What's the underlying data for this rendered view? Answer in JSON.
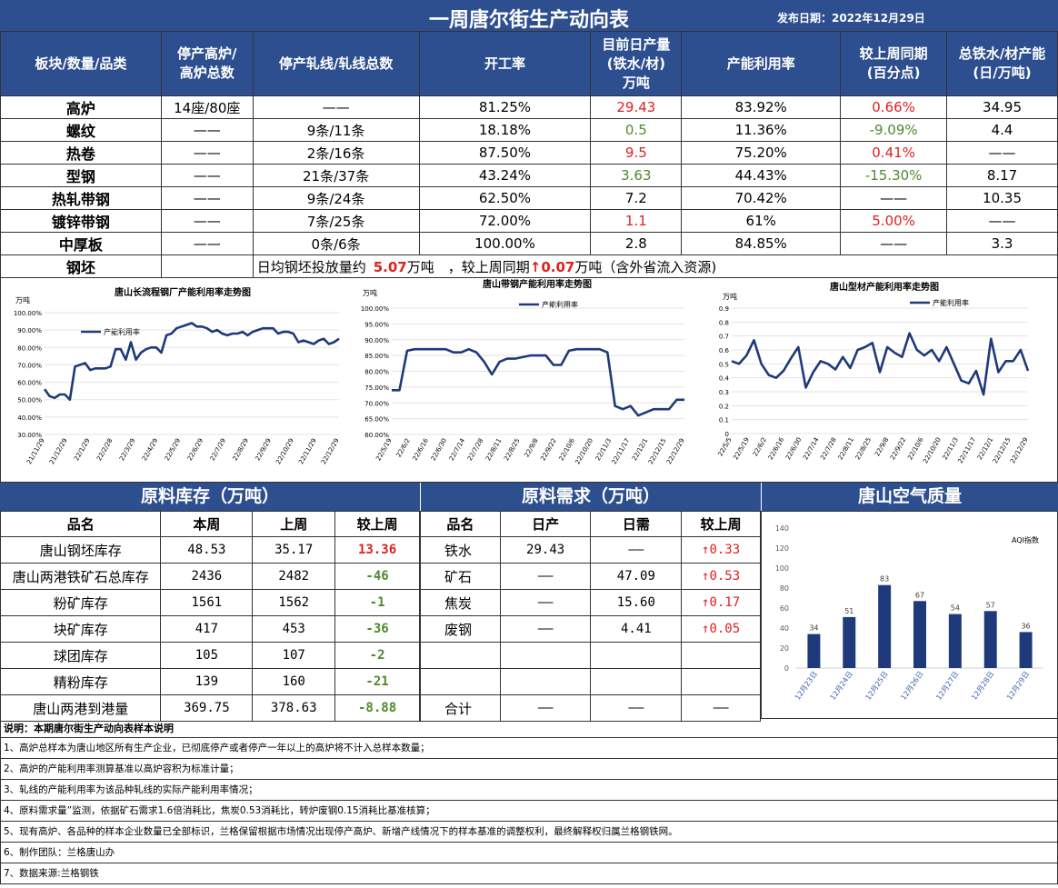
{
  "title": "一周唐尔街生产动向表",
  "publish_date": "发布日期：2022年12月29日",
  "table": {
    "headers": [
      "板块/数量/品类",
      "停产高炉/\n高炉总数",
      "停产轧线/轧线总数",
      "开工率",
      "目前日产量\n(铁水/材)\n万吨",
      "产能利用率",
      "较上周同期\n(百分点)",
      "总铁水/材产能\n(日/万吨)"
    ],
    "rows": [
      {
        "name": "高炉",
        "c1": "14座/80座",
        "c2": "——",
        "c3": "81.25%",
        "c4": "29.43",
        "c5": "83.92%",
        "c6": "0.66%",
        "c7": "34.95"
      },
      {
        "name": "螺纹",
        "c1": "——",
        "c2": "9条/11条",
        "c3": "18.18%",
        "c4": "0.5",
        "c5": "11.36%",
        "c6": "-9.09%",
        "c7": "4.4"
      },
      {
        "name": "热卷",
        "c1": "——",
        "c2": "2条/16条",
        "c3": "87.50%",
        "c4": "9.5",
        "c5": "75.20%",
        "c6": "0.41%",
        "c7": "——"
      },
      {
        "name": "型钢",
        "c1": "——",
        "c2": "21条/37条",
        "c3": "43.24%",
        "c4": "3.63",
        "c5": "44.43%",
        "c6": "-15.30%",
        "c7": "8.17"
      },
      {
        "name": "热轧带钢",
        "c1": "——",
        "c2": "9条/24条",
        "c3": "62.50%",
        "c4": "7.2",
        "c5": "70.42%",
        "c6": "——",
        "c7": "10.35"
      },
      {
        "name": "镀锌带钢",
        "c1": "——",
        "c2": "7条/25条",
        "c3": "72.00%",
        "c4": "1.1",
        "c5": "61%",
        "c6": "5.00%",
        "c7": "——"
      },
      {
        "name": "中厚板",
        "c1": "——",
        "c2": "0条/6条",
        "c3": "100.00%",
        "c4": "2.8",
        "c5": "84.85%",
        "c6": "——",
        "c7": "3.3"
      }
    ],
    "billet": {
      "name": "钢坯",
      "p1": "日均钢坯投放量约",
      "v1": "5.07",
      "p2": "万吨　，较上周同期",
      "v2": "↑0.07",
      "p3": "万吨（含外省流入资源)"
    },
    "colors": {
      "red": "#e02020",
      "green": "#4f8a2a",
      "header": "#2e4f8f"
    }
  },
  "chart_data": [
    {
      "type": "line",
      "title": "唐山长流程钢厂产能利用率走势图",
      "unit": "万吨",
      "legend": "产能利用率",
      "legend_position": "top-left",
      "x_ticks": [
        "21/11/29",
        "21/12/29",
        "22/1/29",
        "22/2/28",
        "22/3/29",
        "22/4/29",
        "22/5/29",
        "22/6/29",
        "22/7/29",
        "22/8/29",
        "22/9/29",
        "22/10/29",
        "22/11/29",
        "22/12/29"
      ],
      "y_ticks": [
        "30.00%",
        "40.00%",
        "50.00%",
        "60.00%",
        "70.00%",
        "80.00%",
        "90.00%",
        "100.00%"
      ],
      "ylim": [
        30,
        100
      ],
      "values": [
        56,
        52,
        51,
        53,
        53,
        50,
        69,
        70,
        71,
        67,
        68,
        68,
        68,
        69,
        79,
        79,
        73,
        83,
        73,
        77,
        79,
        80,
        80,
        77,
        87,
        88,
        91,
        92,
        93,
        94,
        92,
        92,
        91,
        89,
        90,
        88,
        87,
        88,
        88,
        89,
        87,
        89,
        90,
        91,
        91,
        91,
        88,
        89,
        89,
        88,
        83,
        84,
        83,
        82,
        84,
        85,
        82,
        83,
        85
      ]
    },
    {
      "type": "line",
      "title": "唐山带钢产能利用率走势图",
      "unit": "万吨",
      "legend": "产能利用率",
      "legend_position": "top-left",
      "x_ticks": [
        "22/5/19",
        "22/6/2",
        "22/6/16",
        "22/6/30",
        "22/7/14",
        "22/7/28",
        "22/8/11",
        "22/8/25",
        "22/9/8",
        "22/9/22",
        "22/10/6",
        "22/10/20",
        "22/11/3",
        "22/11/17",
        "22/12/1",
        "22/12/15",
        "22/12/29"
      ],
      "y_ticks": [
        "60.00%",
        "65.00%",
        "70.00%",
        "75.00%",
        "80.00%",
        "85.00%",
        "90.00%",
        "95.00%",
        "100.00%"
      ],
      "ylim": [
        60,
        100
      ],
      "values": [
        74,
        74,
        86.5,
        87,
        87,
        87,
        87,
        87,
        86,
        86,
        87,
        86,
        83,
        79,
        83,
        84,
        84,
        84.5,
        85,
        85,
        85,
        82,
        82,
        86.5,
        87,
        87,
        87,
        87,
        86,
        69,
        68,
        69,
        66,
        67,
        68,
        68,
        68,
        71,
        71
      ]
    },
    {
      "type": "line",
      "title": "唐山型材产能利用率走势图",
      "unit": "万吨",
      "legend": "产能利用率",
      "legend_position": "top-center",
      "x_ticks": [
        "22/5/5",
        "22/5/19",
        "22/6/2",
        "22/6/16",
        "22/6/30",
        "22/7/14",
        "22/7/28",
        "22/8/11",
        "22/8/25",
        "22/9/8",
        "22/9/22",
        "22/10/6",
        "22/10/20",
        "22/11/3",
        "22/11/17",
        "22/12/1",
        "22/12/15",
        "22/12/29"
      ],
      "y_ticks": [
        "0",
        "0.1",
        "0.2",
        "0.3",
        "0.4",
        "0.5",
        "0.6",
        "0.7",
        "0.8",
        "0.9"
      ],
      "ylim": [
        0,
        0.9
      ],
      "values": [
        0.52,
        0.5,
        0.56,
        0.67,
        0.5,
        0.42,
        0.4,
        0.45,
        0.54,
        0.62,
        0.33,
        0.44,
        0.52,
        0.5,
        0.46,
        0.55,
        0.47,
        0.6,
        0.62,
        0.65,
        0.44,
        0.62,
        0.58,
        0.55,
        0.72,
        0.6,
        0.56,
        0.6,
        0.52,
        0.62,
        0.5,
        0.38,
        0.36,
        0.45,
        0.28,
        0.68,
        0.44,
        0.52,
        0.52,
        0.6,
        0.45
      ]
    },
    {
      "type": "bar",
      "title": "",
      "legend": "AQI指数",
      "categories": [
        "12月23日",
        "12月24日",
        "12月25日",
        "12月26日",
        "12月27日",
        "12月28日",
        "12月29日"
      ],
      "values": [
        34,
        51,
        83,
        67,
        54,
        57,
        36
      ],
      "y_ticks": [
        "0",
        "20",
        "40",
        "60",
        "80",
        "100",
        "120",
        "140"
      ],
      "ylim": [
        0,
        140
      ],
      "color": "#1f3a7a"
    }
  ],
  "inventory": {
    "title": "原料库存（万吨）",
    "headers": [
      "品名",
      "本周",
      "上周",
      "较上周"
    ],
    "rows": [
      {
        "name": "唐山钢坯库存",
        "cur": "48.53",
        "prev": "35.17",
        "chg": "13.36",
        "style": "red"
      },
      {
        "name": "唐山两港铁矿石总库存",
        "cur": "2436",
        "prev": "2482",
        "chg": "-46",
        "style": "green"
      },
      {
        "name": "粉矿库存",
        "cur": "1561",
        "prev": "1562",
        "chg": "-1",
        "style": "green"
      },
      {
        "name": "块矿库存",
        "cur": "417",
        "prev": "453",
        "chg": "-36",
        "style": "green"
      },
      {
        "name": "球团库存",
        "cur": "105",
        "prev": "107",
        "chg": "-2",
        "style": "green"
      },
      {
        "name": "精粉库存",
        "cur": "139",
        "prev": "160",
        "chg": "-21",
        "style": "green"
      },
      {
        "name": "唐山两港到港量",
        "cur": "369.75",
        "prev": "378.63",
        "chg": "-8.88",
        "style": "green"
      }
    ]
  },
  "demand": {
    "title": "原料需求（万吨）",
    "headers": [
      "品名",
      "日产",
      "日需",
      "较上周"
    ],
    "rows": [
      {
        "name": "铁水",
        "prod": "29.43",
        "need": "——",
        "chg": "↑0.33"
      },
      {
        "name": "矿石",
        "prod": "——",
        "need": "47.09",
        "chg": "↑0.53"
      },
      {
        "name": "焦炭",
        "prod": "——",
        "need": "15.60",
        "chg": "↑0.17"
      },
      {
        "name": "废钢",
        "prod": "——",
        "need": "4.41",
        "chg": "↑0.05"
      },
      {
        "name": "",
        "prod": "",
        "need": "",
        "chg": ""
      },
      {
        "name": "",
        "prod": "",
        "need": "",
        "chg": ""
      },
      {
        "name": "合计",
        "prod": "——",
        "need": "——",
        "chg": "——"
      }
    ]
  },
  "air_quality": {
    "title": "唐山空气质量"
  },
  "notes": [
    "说明：本期唐尔街生产动向表样本说明",
    "1、高炉总样本为唐山地区所有生产企业，已彻底停产或者停产一年以上的高炉将不计入总样本数量；",
    "2、高炉的产能利用率测算基准以高炉容积为标准计量；",
    "3、轧线的产能利用率为该品种轧线的实际产能利用率情况；",
    "4、原料需求量”监测，依据矿石需求1.6倍消耗比，焦炭0.53消耗比，转炉废钢0.15消耗比基准核算；",
    "5、现有高炉、各品种的样本企业数量已全部标识，兰格保留根据市场情况出现停产高炉、新增产线情况下的样本基准的调整权利，最终解释权归属兰格钢铁网。",
    "6、制作团队：兰格唐山办",
    "7、数据来源:兰格钢铁"
  ]
}
